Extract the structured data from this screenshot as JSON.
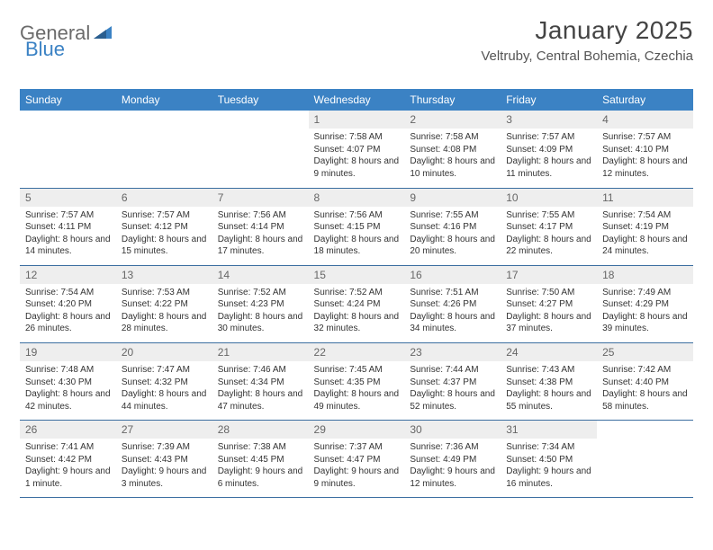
{
  "logo": {
    "word1": "General",
    "word2": "Blue"
  },
  "title": "January 2025",
  "location": "Veltruby, Central Bohemia, Czechia",
  "colors": {
    "header_bg": "#3b82c4",
    "header_text": "#ffffff",
    "row_border": "#3b6ea0",
    "daynum_bg": "#eeeeee",
    "daynum_text": "#666666",
    "body_text": "#333333",
    "logo_gray": "#6b6b6b",
    "logo_blue": "#3b82c4"
  },
  "weekdays": [
    "Sunday",
    "Monday",
    "Tuesday",
    "Wednesday",
    "Thursday",
    "Friday",
    "Saturday"
  ],
  "weeks": [
    [
      null,
      null,
      null,
      {
        "n": "1",
        "sr": "7:58 AM",
        "ss": "4:07 PM",
        "dl": "8 hours and 9 minutes."
      },
      {
        "n": "2",
        "sr": "7:58 AM",
        "ss": "4:08 PM",
        "dl": "8 hours and 10 minutes."
      },
      {
        "n": "3",
        "sr": "7:57 AM",
        "ss": "4:09 PM",
        "dl": "8 hours and 11 minutes."
      },
      {
        "n": "4",
        "sr": "7:57 AM",
        "ss": "4:10 PM",
        "dl": "8 hours and 12 minutes."
      }
    ],
    [
      {
        "n": "5",
        "sr": "7:57 AM",
        "ss": "4:11 PM",
        "dl": "8 hours and 14 minutes."
      },
      {
        "n": "6",
        "sr": "7:57 AM",
        "ss": "4:12 PM",
        "dl": "8 hours and 15 minutes."
      },
      {
        "n": "7",
        "sr": "7:56 AM",
        "ss": "4:14 PM",
        "dl": "8 hours and 17 minutes."
      },
      {
        "n": "8",
        "sr": "7:56 AM",
        "ss": "4:15 PM",
        "dl": "8 hours and 18 minutes."
      },
      {
        "n": "9",
        "sr": "7:55 AM",
        "ss": "4:16 PM",
        "dl": "8 hours and 20 minutes."
      },
      {
        "n": "10",
        "sr": "7:55 AM",
        "ss": "4:17 PM",
        "dl": "8 hours and 22 minutes."
      },
      {
        "n": "11",
        "sr": "7:54 AM",
        "ss": "4:19 PM",
        "dl": "8 hours and 24 minutes."
      }
    ],
    [
      {
        "n": "12",
        "sr": "7:54 AM",
        "ss": "4:20 PM",
        "dl": "8 hours and 26 minutes."
      },
      {
        "n": "13",
        "sr": "7:53 AM",
        "ss": "4:22 PM",
        "dl": "8 hours and 28 minutes."
      },
      {
        "n": "14",
        "sr": "7:52 AM",
        "ss": "4:23 PM",
        "dl": "8 hours and 30 minutes."
      },
      {
        "n": "15",
        "sr": "7:52 AM",
        "ss": "4:24 PM",
        "dl": "8 hours and 32 minutes."
      },
      {
        "n": "16",
        "sr": "7:51 AM",
        "ss": "4:26 PM",
        "dl": "8 hours and 34 minutes."
      },
      {
        "n": "17",
        "sr": "7:50 AM",
        "ss": "4:27 PM",
        "dl": "8 hours and 37 minutes."
      },
      {
        "n": "18",
        "sr": "7:49 AM",
        "ss": "4:29 PM",
        "dl": "8 hours and 39 minutes."
      }
    ],
    [
      {
        "n": "19",
        "sr": "7:48 AM",
        "ss": "4:30 PM",
        "dl": "8 hours and 42 minutes."
      },
      {
        "n": "20",
        "sr": "7:47 AM",
        "ss": "4:32 PM",
        "dl": "8 hours and 44 minutes."
      },
      {
        "n": "21",
        "sr": "7:46 AM",
        "ss": "4:34 PM",
        "dl": "8 hours and 47 minutes."
      },
      {
        "n": "22",
        "sr": "7:45 AM",
        "ss": "4:35 PM",
        "dl": "8 hours and 49 minutes."
      },
      {
        "n": "23",
        "sr": "7:44 AM",
        "ss": "4:37 PM",
        "dl": "8 hours and 52 minutes."
      },
      {
        "n": "24",
        "sr": "7:43 AM",
        "ss": "4:38 PM",
        "dl": "8 hours and 55 minutes."
      },
      {
        "n": "25",
        "sr": "7:42 AM",
        "ss": "4:40 PM",
        "dl": "8 hours and 58 minutes."
      }
    ],
    [
      {
        "n": "26",
        "sr": "7:41 AM",
        "ss": "4:42 PM",
        "dl": "9 hours and 1 minute."
      },
      {
        "n": "27",
        "sr": "7:39 AM",
        "ss": "4:43 PM",
        "dl": "9 hours and 3 minutes."
      },
      {
        "n": "28",
        "sr": "7:38 AM",
        "ss": "4:45 PM",
        "dl": "9 hours and 6 minutes."
      },
      {
        "n": "29",
        "sr": "7:37 AM",
        "ss": "4:47 PM",
        "dl": "9 hours and 9 minutes."
      },
      {
        "n": "30",
        "sr": "7:36 AM",
        "ss": "4:49 PM",
        "dl": "9 hours and 12 minutes."
      },
      {
        "n": "31",
        "sr": "7:34 AM",
        "ss": "4:50 PM",
        "dl": "9 hours and 16 minutes."
      },
      null
    ]
  ],
  "labels": {
    "sunrise": "Sunrise: ",
    "sunset": "Sunset: ",
    "daylight": "Daylight: "
  }
}
